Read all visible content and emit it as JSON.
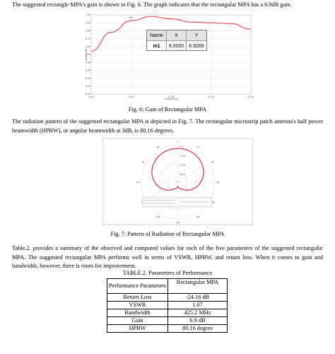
{
  "para1": "The suggested rectangle MPA's gain is shown in Fig. 6. The graph indicates that the rectangular MPA has a 6.9dB gain.",
  "fig6": {
    "caption": "Fig. 6: Gain of Rectangular MPA",
    "chart_data": {
      "type": "line",
      "title": "",
      "xlabel": "Freq [GHz]",
      "ylabel": "Gain (dB)",
      "xlim": [
        8.0,
        12.0
      ],
      "ylim": [
        6.0,
        7.0
      ],
      "y_ticks": [
        "7.00",
        "6.90",
        "6.80",
        "6.70",
        "6.60",
        "6.50",
        "6.40",
        "6.30",
        "6.20",
        "6.10",
        "6.00"
      ],
      "x_ticks": [
        "8.00",
        "9.00",
        "10.00",
        "11.00",
        "12.00"
      ],
      "grid": true,
      "series": [
        {
          "x": [
            8.0,
            8.5,
            9.0,
            9.5,
            10.0,
            10.5,
            11.0,
            11.5,
            12.0
          ],
          "y": [
            6.54,
            6.78,
            6.927,
            6.98,
            6.95,
            6.91,
            6.9,
            6.89,
            6.82
          ],
          "color": "#e8474f"
        }
      ],
      "marker": {
        "label": "m1",
        "headers": [
          "Name",
          "X",
          "Y"
        ],
        "name": "m1",
        "x": "9.0000",
        "y": "6.9269"
      }
    }
  },
  "para2": "The radiation pattern of the suggested rectangular MPA is depicted in Fig. 7. The rectangular microstrip patch antenna's half power beamwidth (HPBW), or angular beamwidth at 3dB, is 80.16 degrees.",
  "fig7": {
    "caption": "Fig. 7: Pattern of Radiation of Rectangular MPA",
    "chart_data": {
      "type": "polar",
      "angle_labels": [
        "0",
        "30",
        "-30",
        "60",
        "-60",
        "90",
        "-90",
        "120",
        "-120",
        "150",
        "-150",
        "180"
      ],
      "radial_ticks": [
        "0.00",
        "-10.00",
        "-20.00",
        "-30.00"
      ],
      "series": [
        {
          "name": "",
          "color": "#d8323f"
        }
      ]
    }
  },
  "para3": "Table.2. provides a summary of the observed and computed values for each of the five parameters of the suggested rectangular MPA. The suggested rectangular MPA performs well in terms of VSWR, HPBW, and return loss. When it comes to gain and bandwidth, however, there is room for improvement.",
  "table": {
    "title": "TABLE.2. Parameters of Performance",
    "headers": [
      "Performance Parameters",
      "Rectangular MPA"
    ],
    "rows": [
      [
        "Return Loss",
        "-24.16 dB"
      ],
      [
        "VSWR",
        "1.07"
      ],
      [
        "Bandwidth",
        "425.2 MHz"
      ],
      [
        "Gain",
        "6.9 dB"
      ],
      [
        "HPBW",
        "80.16 degree"
      ]
    ]
  }
}
